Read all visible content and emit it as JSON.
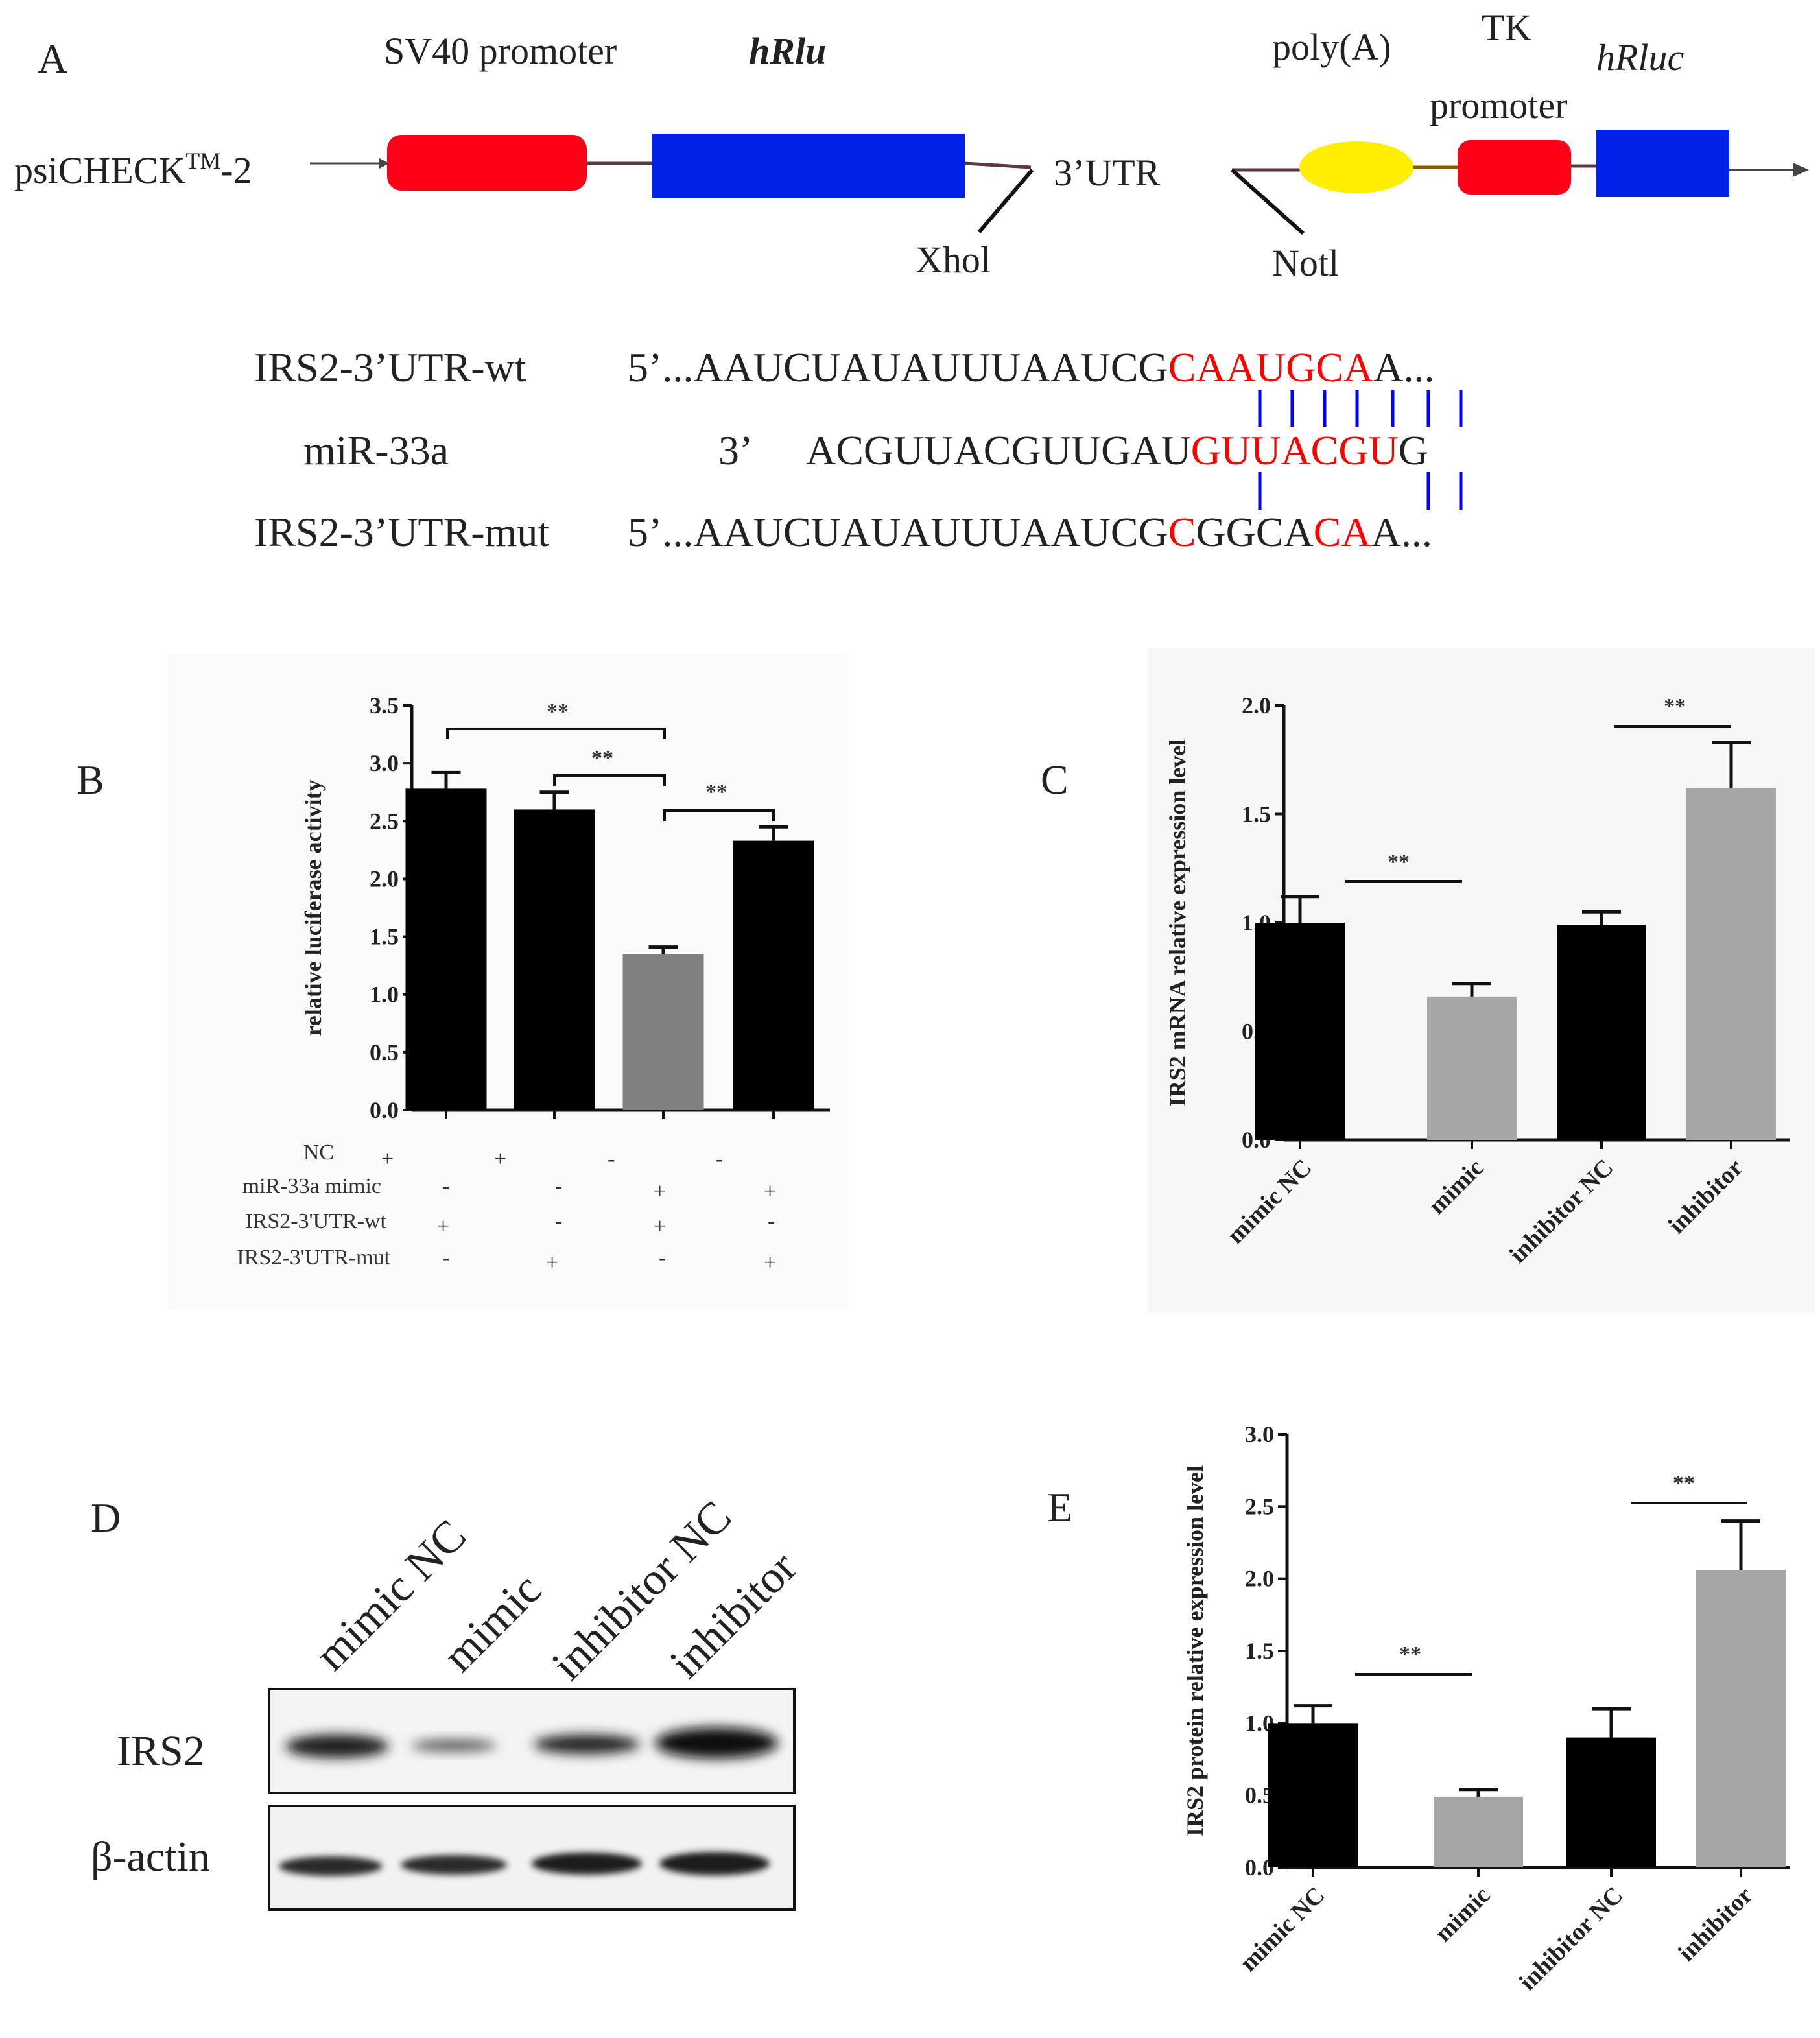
{
  "panel_a": {
    "letter": "A",
    "vector_label": "psiCHECK",
    "vector_tm": "TM",
    "vector_suffix": "-2",
    "sv40_label": "SV40 promoter",
    "hrlu_label": "hRlu",
    "utr_label": "3’UTR",
    "xhol_label": "Xhol",
    "notl_label": "Notl",
    "polya_label": "poly(A)",
    "tk_label": "TK",
    "promoter_label": "promoter",
    "hrluc_label": "hRluc",
    "colors": {
      "sv40": "#ff0019",
      "hrlu": "#0022e8",
      "polya": "#ffee00",
      "tk": "#ff0019",
      "hrluc": "#0022e8",
      "match": "#ff0000",
      "pairing": "#0000ff"
    },
    "rows": [
      {
        "name": "IRS2-3’UTR-wt",
        "prefix": "5’...AAUCUAUAUUUAAUCG",
        "highlight": "CAAUGCA",
        "suffix": "A..."
      },
      {
        "name": "miR-33a",
        "prefix": "3’",
        "body": "ACGUUACGUUGAU",
        "highlight": "GUUACGU",
        "suffix": "G"
      },
      {
        "name": "IRS2-3’UTR-mut",
        "prefix": "5’...AAUCUAUAUUUAAUCG",
        "hl1": "C",
        "mid": "GGCA",
        "hl2": "CA",
        "suffix": "A..."
      }
    ]
  },
  "panel_b": {
    "letter": "B",
    "significance": [
      "**",
      "**",
      "**"
    ],
    "conditions": [
      {
        "label": "NC",
        "signs": [
          "+",
          "+",
          "-",
          "-"
        ]
      },
      {
        "label": "miR-33a mimic",
        "signs": [
          "-",
          "-",
          "+",
          "+"
        ]
      },
      {
        "label": "IRS2-3'UTR-wt",
        "signs": [
          "+",
          "-",
          "+",
          "-"
        ]
      },
      {
        "label": "IRS2-3'UTR-mut",
        "signs": [
          "-",
          "+",
          "-",
          "+"
        ]
      }
    ]
  },
  "panel_c": {
    "letter": "C",
    "significance": [
      "**",
      "**"
    ]
  },
  "panel_d": {
    "letter": "D",
    "lanes": [
      "mimic NC",
      "mimic",
      "inhibitor NC",
      "inhibitor"
    ],
    "rows": [
      "IRS2",
      "β-actin"
    ]
  },
  "panel_e": {
    "letter": "E",
    "significance": [
      "**",
      "**"
    ]
  },
  "chart_data": [
    {
      "panel": "B",
      "type": "bar",
      "categories": [
        "",
        "",
        "",
        ""
      ],
      "values": [
        2.78,
        2.6,
        1.35,
        2.33
      ],
      "errors": [
        0.14,
        0.15,
        0.06,
        0.12
      ],
      "colors": [
        "#000000",
        "#000000",
        "#808080",
        "#000000"
      ],
      "ylabel": "relative luciferase activity",
      "ylim": [
        0,
        3.5
      ],
      "yticks": [
        "0.0",
        "0.5",
        "1.0",
        "1.5",
        "2.0",
        "2.5",
        "3.0",
        "3.5"
      ],
      "grid": false
    },
    {
      "panel": "C",
      "type": "bar",
      "categories": [
        "mimic NC",
        "mimic",
        "inhibitor NC",
        "inhibitor"
      ],
      "values": [
        1.0,
        0.66,
        0.99,
        1.62
      ],
      "errors": [
        0.12,
        0.06,
        0.06,
        0.21
      ],
      "colors": [
        "#000000",
        "#a6a6a6",
        "#000000",
        "#a6a6a6"
      ],
      "ylabel": "IRS2 mRNA relative expression level",
      "ylim": [
        0,
        2.0
      ],
      "yticks": [
        "0.0",
        "0.5",
        "1.0",
        "1.5",
        "2.0"
      ],
      "grid": false
    },
    {
      "panel": "E",
      "type": "bar",
      "categories": [
        "mimic NC",
        "mimic",
        "inhibitor NC",
        "inhibitor"
      ],
      "values": [
        1.0,
        0.49,
        0.9,
        2.06
      ],
      "errors": [
        0.12,
        0.05,
        0.2,
        0.34
      ],
      "colors": [
        "#000000",
        "#a6a6a6",
        "#000000",
        "#a6a6a6"
      ],
      "ylabel": "IRS2 protein relative expression level",
      "ylim": [
        0,
        3.0
      ],
      "yticks": [
        "0.0",
        "0.5",
        "1.0",
        "1.5",
        "2.0",
        "2.5",
        "3.0"
      ],
      "grid": false
    }
  ]
}
